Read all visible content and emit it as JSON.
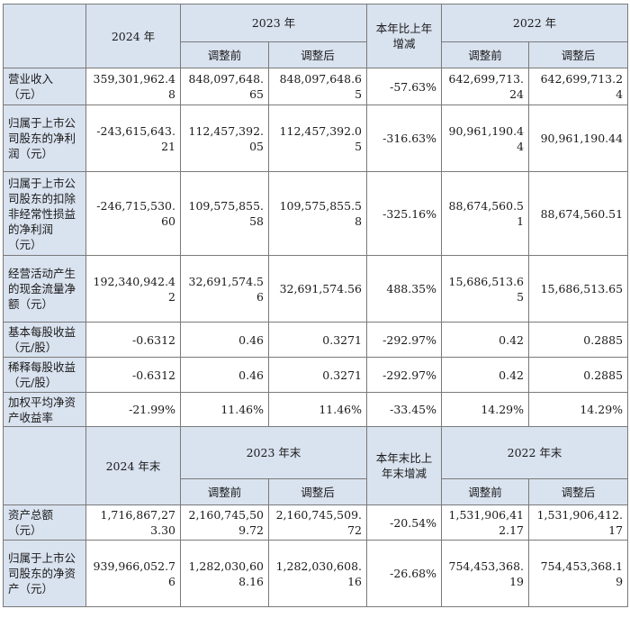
{
  "header1": {
    "year2024": "2024 年",
    "year2023": "2023 年",
    "change": "本年比上年增减",
    "year2022": "2022 年",
    "before": "调整前",
    "after": "调整后"
  },
  "rows1": [
    {
      "label": "营业收入（元）",
      "v2024": "359,301,962.48",
      "v2023b": "848,097,648.65",
      "v2023a": "848,097,648.65",
      "chg": "-57.63%",
      "v2022b": "642,699,713.24",
      "v2022a": "642,699,713.24"
    },
    {
      "label": "归属于上市公司股东的净利润（元）",
      "v2024": "-243,615,643.21",
      "v2023b": "112,457,392.05",
      "v2023a": "112,457,392.05",
      "chg": "-316.63%",
      "v2022b": "90,961,190.44",
      "v2022a": "90,961,190.44"
    },
    {
      "label": "归属于上市公司股东的扣除非经常性损益的净利润（元）",
      "v2024": "-246,715,530.60",
      "v2023b": "109,575,855.58",
      "v2023a": "109,575,855.58",
      "chg": "-325.16%",
      "v2022b": "88,674,560.51",
      "v2022a": "88,674,560.51"
    },
    {
      "label": "经营活动产生的现金流量净额（元）",
      "v2024": "192,340,942.42",
      "v2023b": "32,691,574.56",
      "v2023a": "32,691,574.56",
      "chg": "488.35%",
      "v2022b": "15,686,513.65",
      "v2022a": "15,686,513.65"
    },
    {
      "label": "基本每股收益（元/股）",
      "v2024": "-0.6312",
      "v2023b": "0.46",
      "v2023a": "0.3271",
      "chg": "-292.97%",
      "v2022b": "0.42",
      "v2022a": "0.2885"
    },
    {
      "label": "稀释每股收益（元/股）",
      "v2024": "-0.6312",
      "v2023b": "0.46",
      "v2023a": "0.3271",
      "chg": "-292.97%",
      "v2022b": "0.42",
      "v2022a": "0.2885"
    },
    {
      "label": "加权平均净资产收益率",
      "v2024": "-21.99%",
      "v2023b": "11.46%",
      "v2023a": "11.46%",
      "chg": "-33.45%",
      "v2022b": "14.29%",
      "v2022a": "14.29%"
    }
  ],
  "header2": {
    "year2024": "2024 年末",
    "year2023": "2023 年末",
    "change": "本年末比上年末增减",
    "year2022": "2022 年末",
    "before": "调整前",
    "after": "调整后"
  },
  "rows2": [
    {
      "label": "资产总额（元）",
      "v2024": "1,716,867,273.30",
      "v2023b": "2,160,745,509.72",
      "v2023a": "2,160,745,509.72",
      "chg": "-20.54%",
      "v2022b": "1,531,906,412.17",
      "v2022a": "1,531,906,412.17"
    },
    {
      "label": "归属于上市公司股东的净资产（元）",
      "v2024": "939,966,052.76",
      "v2023b": "1,282,030,608.16",
      "v2023a": "1,282,030,608.16",
      "chg": "-26.68%",
      "v2022b": "754,453,368.19",
      "v2022a": "754,453,368.19"
    }
  ]
}
